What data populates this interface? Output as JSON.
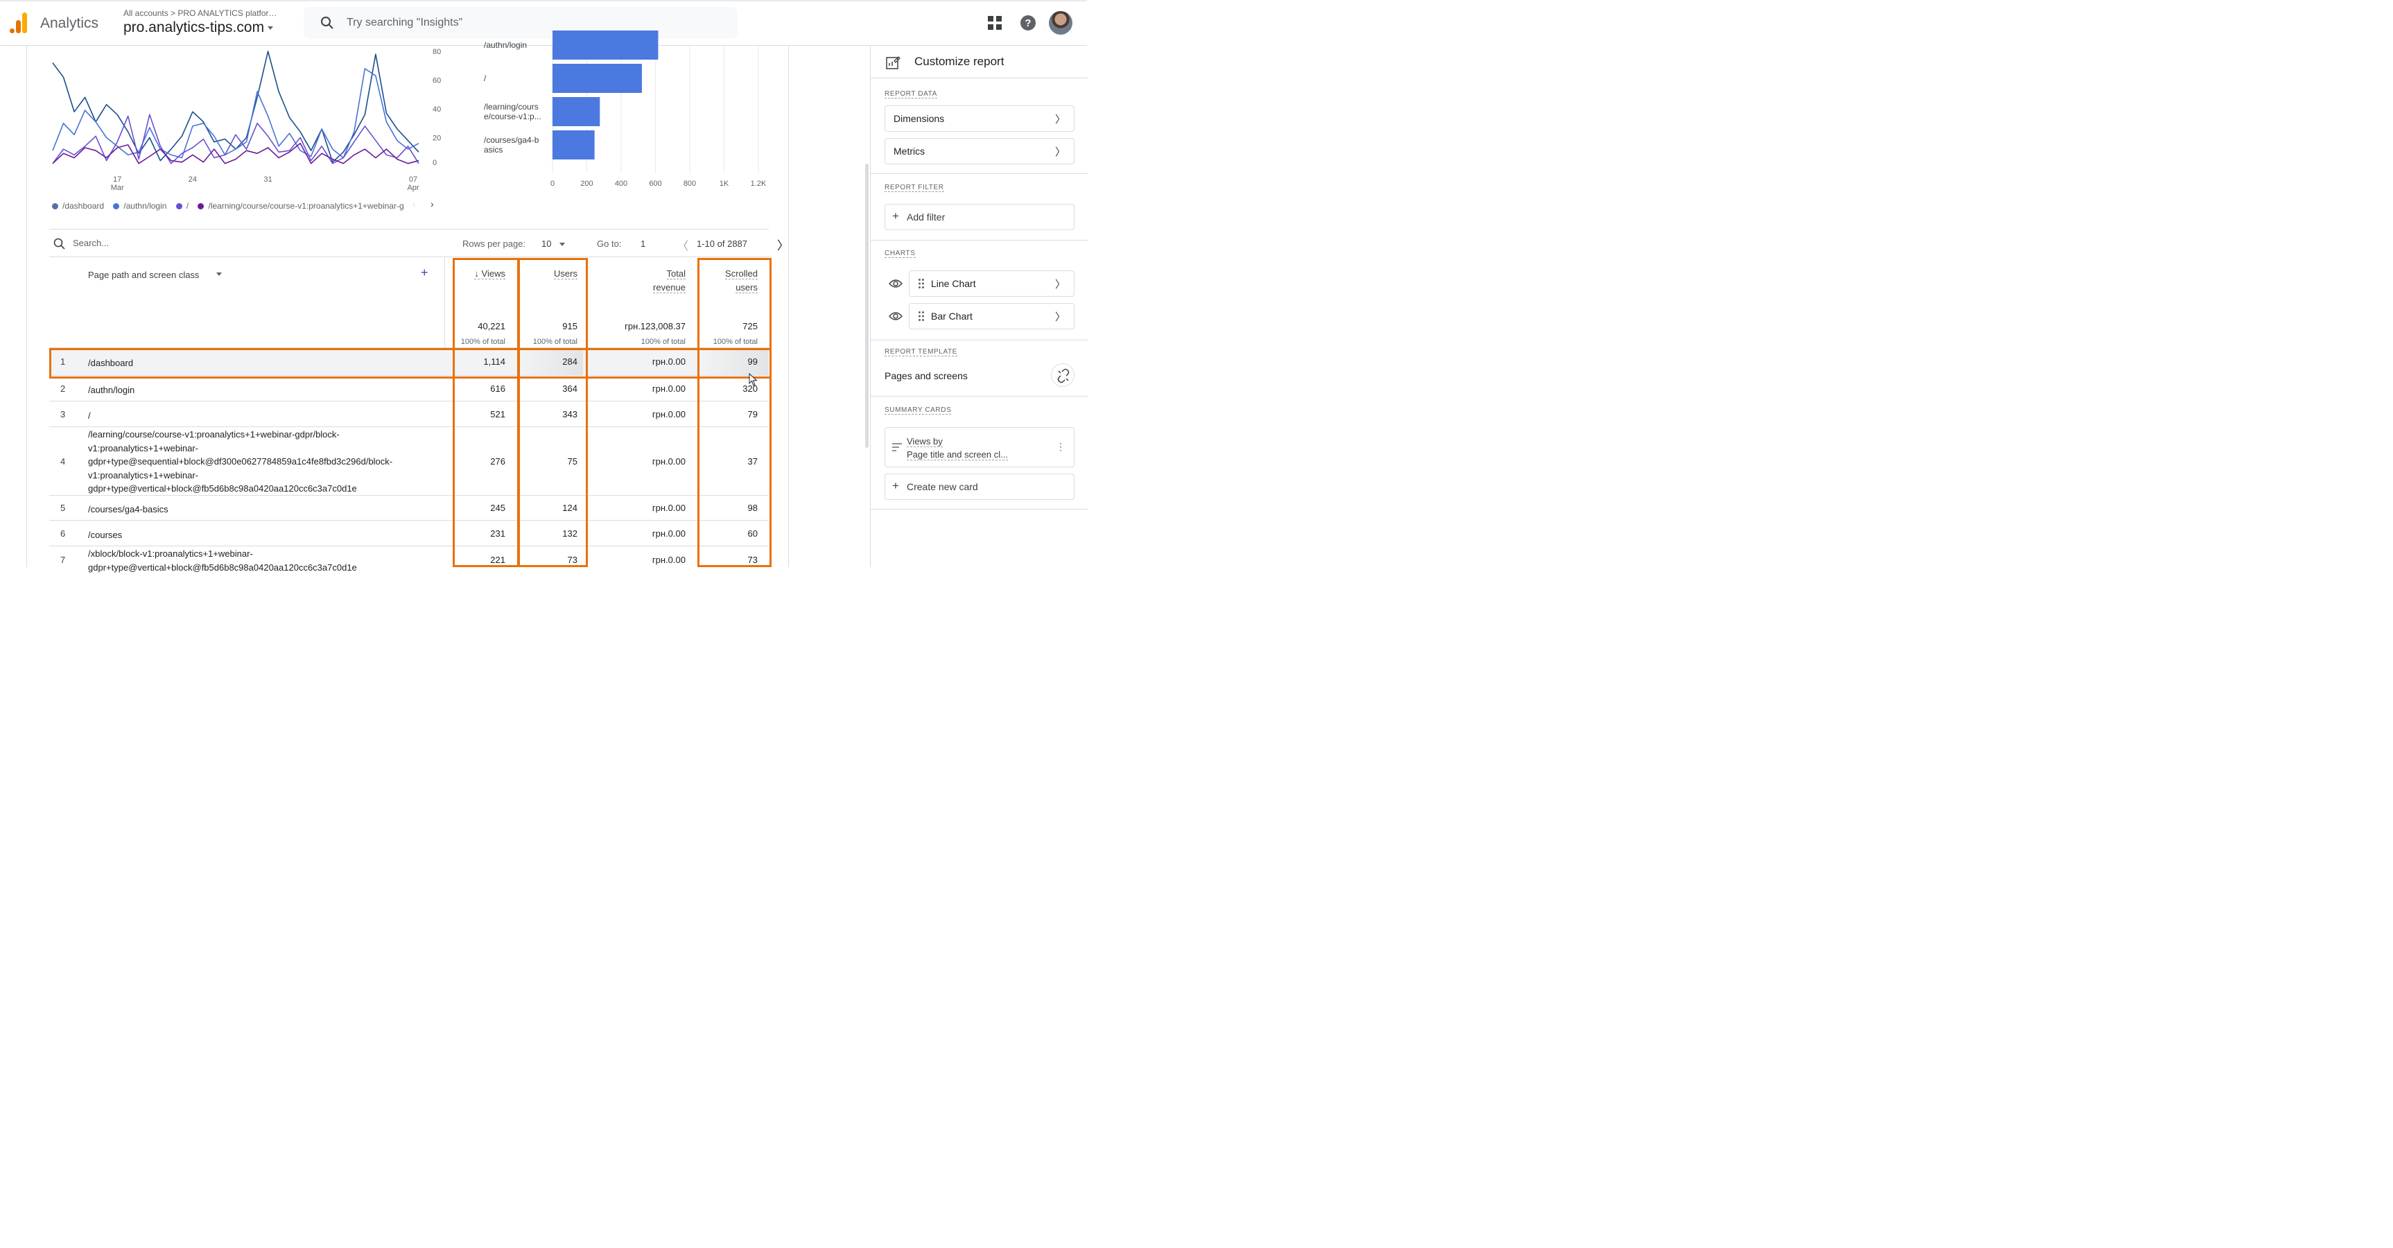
{
  "header": {
    "app_name": "Analytics",
    "breadcrumb": "All accounts > PRO ANALYTICS platfor…",
    "property": "pro.analytics-tips.com",
    "search_placeholder": "Try searching \"Insights\""
  },
  "line_chart": {
    "y_ticks": [
      "80",
      "60",
      "40",
      "20",
      "0"
    ],
    "x_ticks": [
      {
        "day": "17",
        "month": "Mar"
      },
      {
        "day": "24",
        "month": ""
      },
      {
        "day": "31",
        "month": ""
      },
      {
        "day": "07",
        "month": "Apr"
      }
    ],
    "legend": [
      "/dashboard",
      "/authn/login",
      "/",
      "/learning/course/course-v1:proanalytics+1+webinar-g"
    ]
  },
  "bar_chart": {
    "labels": [
      [
        "/authn/login"
      ],
      [
        "/"
      ],
      [
        "/learning/cours",
        "e/course-v1:p..."
      ],
      [
        "/courses/ga4-b",
        "asics"
      ]
    ],
    "x_ticks": [
      "0",
      "200",
      "400",
      "600",
      "800",
      "1K",
      "1.2K"
    ]
  },
  "chart_data": [
    {
      "type": "line",
      "title": "",
      "xlabel": "",
      "ylabel": "",
      "ylim": [
        0,
        80
      ],
      "x_ticks": [
        "17 Mar",
        "24",
        "31",
        "07 Apr"
      ],
      "series": [
        {
          "name": "/dashboard",
          "color": "#1a4f8b",
          "values": [
            72,
            62,
            38,
            48,
            31,
            43,
            36,
            24,
            9,
            20,
            4,
            12,
            21,
            38,
            31,
            17,
            19,
            12,
            20,
            48,
            80,
            52,
            34,
            24,
            11,
            26,
            3,
            10,
            22,
            36,
            78,
            37,
            26,
            18,
            10
          ]
        },
        {
          "name": "/authn/login",
          "color": "#4a72d9",
          "values": [
            11,
            30,
            22,
            39,
            31,
            20,
            14,
            8,
            10,
            27,
            12,
            8,
            6,
            28,
            30,
            21,
            8,
            12,
            17,
            52,
            35,
            14,
            23,
            11,
            7,
            26,
            12,
            6,
            24,
            68,
            63,
            31,
            18,
            12,
            16
          ]
        },
        {
          "name": "/",
          "color": "#6a4fd4",
          "values": [
            2,
            12,
            8,
            14,
            21,
            4,
            17,
            35,
            5,
            36,
            14,
            2,
            9,
            13,
            19,
            6,
            8,
            22,
            12,
            30,
            21,
            10,
            11,
            20,
            4,
            14,
            2,
            6,
            17,
            28,
            18,
            8,
            6,
            14,
            2
          ]
        },
        {
          "name": "/learning/course/course-v1:proanalytics+1+webinar-g",
          "color": "#6a1b9a",
          "values": [
            2,
            9,
            6,
            13,
            11,
            6,
            13,
            15,
            2,
            7,
            12,
            4,
            3,
            8,
            3,
            12,
            2,
            5,
            11,
            9,
            13,
            6,
            10,
            16,
            2,
            9,
            5,
            2,
            8,
            12,
            6,
            12,
            5,
            2,
            4
          ]
        }
      ]
    },
    {
      "type": "bar",
      "title": "",
      "xlabel": "",
      "ylabel": "",
      "orientation": "horizontal",
      "color": "#4c79df",
      "categories": [
        "/authn/login",
        "/",
        "/learning/course/course-v1:p...",
        "/courses/ga4-basics"
      ],
      "values": [
        616,
        521,
        276,
        245
      ],
      "xlim": [
        0,
        1200
      ]
    }
  ],
  "table": {
    "search_placeholder": "Search...",
    "rows_per_page_label": "Rows per page:",
    "rows_per_page_value": "10",
    "goto_label": "Go to:",
    "goto_value": "1",
    "range": "1-10 of 2887",
    "dimension_header": "Page path and screen class",
    "columns": [
      {
        "label1": "↓ Views",
        "label2": "",
        "total": "40,221",
        "pct": "100% of total"
      },
      {
        "label1": "Users",
        "label2": "",
        "total": "915",
        "pct": "100% of total"
      },
      {
        "label1": "Total",
        "label2": "revenue",
        "total": "грн.123,008.37",
        "pct": "100% of total"
      },
      {
        "label1": "Scrolled",
        "label2": "users",
        "total": "725",
        "pct": "100% of total"
      }
    ],
    "rows": [
      {
        "num": "1",
        "path": "/dashboard",
        "views": "1,114",
        "users": "284",
        "revenue": "грн.0.00",
        "scrolled": "99"
      },
      {
        "num": "2",
        "path": "/authn/login",
        "views": "616",
        "users": "364",
        "revenue": "грн.0.00",
        "scrolled": "320"
      },
      {
        "num": "3",
        "path": "/",
        "views": "521",
        "users": "343",
        "revenue": "грн.0.00",
        "scrolled": "79"
      },
      {
        "num": "4",
        "path": "/learning/course/course-v1:proanalytics+1+webinar-gdpr/block-v1:proanalytics+1+webinar-gdpr+type@sequential+block@df300e0627784859a1c4fe8fbd3c296d/block-v1:proanalytics+1+webinar-gdpr+type@vertical+block@fb5d6b8c98a0420aa120cc6c3a7c0d1e",
        "path_lines": [
          "/learning/course/course-v1:proanalytics+1+webinar-gdpr/block-",
          "v1:proanalytics+1+webinar-",
          "gdpr+type@sequential+block@df300e0627784859a1c4fe8fbd3c296d/block-",
          "v1:proanalytics+1+webinar-",
          "gdpr+type@vertical+block@fb5d6b8c98a0420aa120cc6c3a7c0d1e"
        ],
        "views": "276",
        "users": "75",
        "revenue": "грн.0.00",
        "scrolled": "37"
      },
      {
        "num": "5",
        "path": "/courses/ga4-basics",
        "views": "245",
        "users": "124",
        "revenue": "грн.0.00",
        "scrolled": "98"
      },
      {
        "num": "6",
        "path": "/courses",
        "views": "231",
        "users": "132",
        "revenue": "грн.0.00",
        "scrolled": "60"
      },
      {
        "num": "7",
        "path_lines": [
          "/xblock/block-v1:proanalytics+1+webinar-",
          "gdpr+type@vertical+block@fb5d6b8c98a0420aa120cc6c3a7c0d1e"
        ],
        "views": "221",
        "users": "73",
        "revenue": "грн.0.00",
        "scrolled": "73"
      }
    ]
  },
  "panel": {
    "title": "Customize report",
    "report_data_label": "REPORT DATA",
    "dimensions": "Dimensions",
    "metrics": "Metrics",
    "report_filter_label": "REPORT FILTER",
    "add_filter": "Add filter",
    "charts_label": "CHARTS",
    "line_chart": "Line Chart",
    "bar_chart": "Bar Chart",
    "report_template_label": "REPORT TEMPLATE",
    "template_name": "Pages and screens",
    "summary_cards_label": "SUMMARY CARDS",
    "card_line1": "Views by",
    "card_line2": "Page title and screen cl...",
    "create_card": "Create new card"
  },
  "colors": {
    "highlight": "#e8710a",
    "bar": "#4c79df",
    "accent": "#5e35b1"
  }
}
